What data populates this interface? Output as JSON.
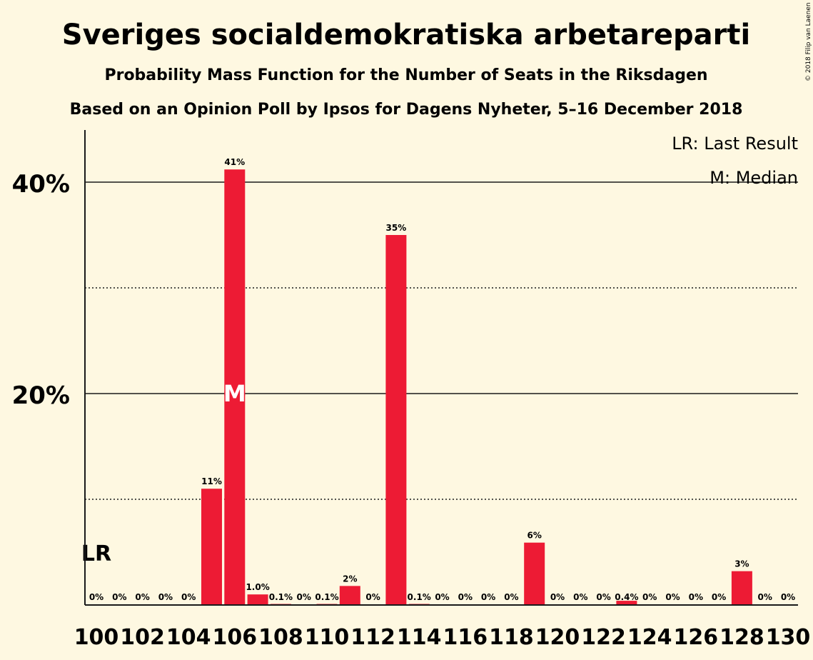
{
  "chart_data": {
    "type": "bar",
    "title": "Sveriges socialdemokratiska arbetareparti",
    "subtitle": "Probability Mass Function for the Number of Seats in the Riksdagen",
    "subtitle2": "Based on an Opinion Poll by Ipsos for Dagens Nyheter, 5–16 December 2018",
    "copyright": "© 2018 Filip van Laenen",
    "legend": [
      "LR: Last Result",
      "M: Median"
    ],
    "legend_position": "top-right",
    "seats": [
      100,
      101,
      102,
      103,
      104,
      105,
      106,
      107,
      108,
      109,
      110,
      111,
      112,
      113,
      114,
      115,
      116,
      117,
      118,
      119,
      120,
      121,
      122,
      123,
      124,
      125,
      126,
      127,
      128,
      129,
      130
    ],
    "values": [
      0,
      0,
      0,
      0,
      0,
      11,
      41,
      1.0,
      0.1,
      0,
      0.1,
      2,
      0,
      35,
      0.1,
      0,
      0,
      0,
      0,
      6,
      0,
      0,
      0,
      0.4,
      0,
      0,
      0,
      0,
      3,
      0,
      0
    ],
    "bar_heights": [
      0,
      0,
      0,
      0,
      0,
      11.0,
      41.2,
      1.0,
      0.1,
      0,
      0.1,
      1.8,
      0,
      35.0,
      0.1,
      0,
      0,
      0,
      0,
      5.9,
      0,
      0,
      0,
      0.4,
      0,
      0,
      0,
      0,
      3.2,
      0,
      0
    ],
    "data_labels": [
      "0%",
      "0%",
      "0%",
      "0%",
      "0%",
      "11%",
      "41%",
      "1.0%",
      "0.1%",
      "0%",
      "0.1%",
      "2%",
      "0%",
      "35%",
      "0.1%",
      "0%",
      "0%",
      "0%",
      "0%",
      "6%",
      "0%",
      "0%",
      "0%",
      "0.4%",
      "0%",
      "0%",
      "0%",
      "0%",
      "3%",
      "0%",
      "0%"
    ],
    "x_tick_labels": [
      "100",
      "102",
      "104",
      "106",
      "108",
      "110",
      "112",
      "114",
      "116",
      "118",
      "120",
      "122",
      "124",
      "126",
      "128",
      "130"
    ],
    "y_tick_labels": [
      "20%",
      "40%"
    ],
    "ylim": [
      0,
      45
    ],
    "grid_solid": [
      20,
      40
    ],
    "grid_dotted": [
      10,
      30
    ],
    "last_result_seat": 100,
    "last_result_label": "LR",
    "median_seat": 106,
    "median_label": "M",
    "bar_color": "#ed1b34"
  }
}
